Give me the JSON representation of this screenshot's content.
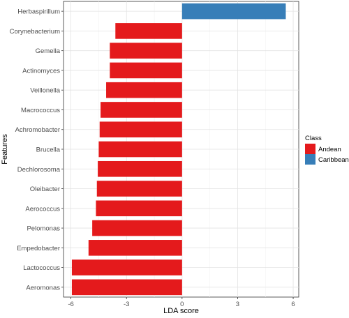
{
  "chart_data": {
    "type": "bar",
    "orientation": "horizontal",
    "xlabel": "LDA score",
    "ylabel": "Features",
    "xlim": [
      -6.4,
      6.3
    ],
    "x_ticks": [
      -6,
      -3,
      0,
      3,
      6
    ],
    "x_tick_labels": [
      "-6",
      "-3",
      "0",
      "3",
      "6"
    ],
    "grid": true,
    "legend": {
      "title": "Class",
      "position": "right",
      "entries": [
        {
          "label": "Andean",
          "color": "#e41a1c"
        },
        {
          "label": "Caribbean",
          "color": "#377eb8"
        }
      ]
    },
    "categories": [
      "Herbaspirillum",
      "Corynebacterium",
      "Gemella",
      "Actinomyces",
      "Veillonella",
      "Macrococcus",
      "Achromobacter",
      "Brucella",
      "Dechlorosoma",
      "Oleibacter",
      "Aerococcus",
      "Pelomonas",
      "Empedobacter",
      "Lactococcus",
      "Aeromonas"
    ],
    "values": [
      5.6,
      -3.6,
      -3.9,
      -3.9,
      -4.1,
      -4.4,
      -4.45,
      -4.5,
      -4.55,
      -4.6,
      -4.65,
      -4.85,
      -5.05,
      -5.95,
      -5.95
    ],
    "classes": [
      "Caribbean",
      "Andean",
      "Andean",
      "Andean",
      "Andean",
      "Andean",
      "Andean",
      "Andean",
      "Andean",
      "Andean",
      "Andean",
      "Andean",
      "Andean",
      "Andean",
      "Andean"
    ]
  }
}
